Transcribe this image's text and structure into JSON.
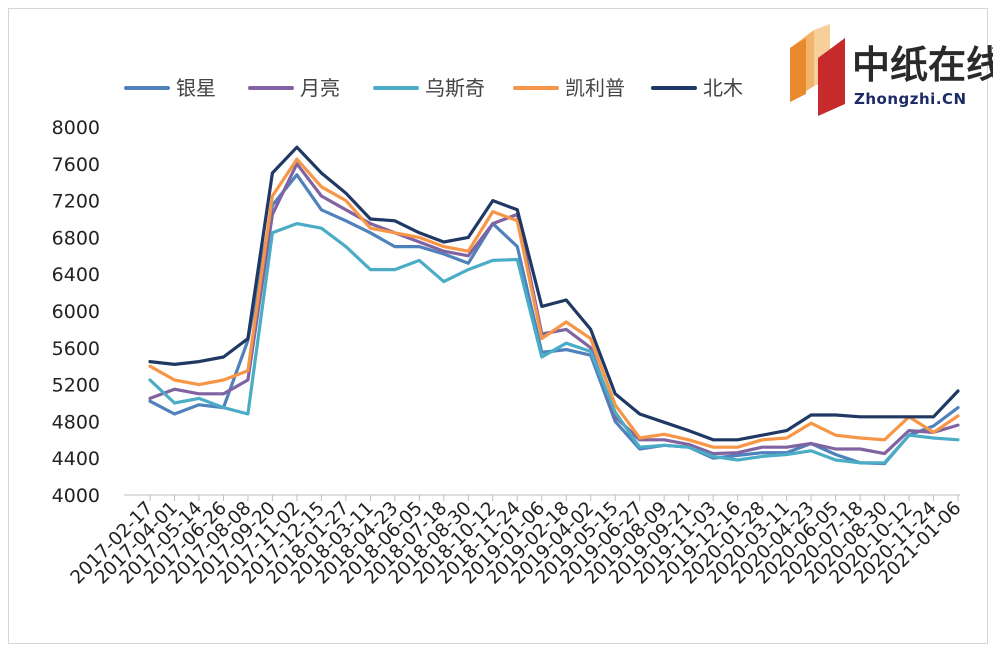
{
  "logo": {
    "cn": "中纸在线",
    "en": "Zhongzhi.CN"
  },
  "chart_data": {
    "type": "line",
    "title": "",
    "xlabel": "",
    "ylabel": "",
    "ylim": [
      4000,
      8000
    ],
    "yticks": [
      4000,
      4400,
      4800,
      5200,
      5600,
      6000,
      6400,
      6800,
      7200,
      7600,
      8000
    ],
    "grid": false,
    "legend_position": "top",
    "x": [
      "2017-02-17",
      "2017-04-01",
      "2017-05-14",
      "2017-06-26",
      "2017-08-08",
      "2017-09-20",
      "2017-11-02",
      "2017-12-15",
      "2018-01-27",
      "2018-03-11",
      "2018-04-23",
      "2018-06-05",
      "2018-07-18",
      "2018-08-30",
      "2018-10-12",
      "2018-11-24",
      "2019-01-06",
      "2019-02-18",
      "2019-04-02",
      "2019-05-15",
      "2019-06-27",
      "2019-08-09",
      "2019-09-21",
      "2019-11-03",
      "2019-12-16",
      "2020-01-28",
      "2020-03-11",
      "2020-04-23",
      "2020-06-05",
      "2020-07-18",
      "2020-08-30",
      "2020-10-12",
      "2020-11-24",
      "2021-01-06"
    ],
    "series": [
      {
        "name": "银星",
        "color": "#4f81bd",
        "values": [
          5020,
          4880,
          4980,
          4950,
          5680,
          7150,
          7480,
          7100,
          6980,
          6850,
          6700,
          6700,
          6620,
          6520,
          6950,
          6700,
          5550,
          5580,
          5520,
          4800,
          4500,
          4540,
          4520,
          4400,
          4430,
          4460,
          4460,
          4560,
          4440,
          4350,
          4340,
          4650,
          4750,
          4950
        ]
      },
      {
        "name": "月亮",
        "color": "#8064a2",
        "values": [
          5050,
          5150,
          5100,
          5100,
          5250,
          7050,
          7600,
          7250,
          7100,
          6950,
          6850,
          6750,
          6650,
          6600,
          6950,
          7050,
          5750,
          5800,
          5600,
          4850,
          4600,
          4600,
          4550,
          4450,
          4460,
          4520,
          4520,
          4560,
          4500,
          4500,
          4450,
          4700,
          4680,
          4760
        ]
      },
      {
        "name": "乌斯奇",
        "color": "#4bacc6",
        "values": [
          5250,
          5000,
          5050,
          4950,
          4880,
          6850,
          6950,
          6900,
          6700,
          6450,
          6450,
          6550,
          6320,
          6450,
          6550,
          6560,
          5500,
          5650,
          5560,
          4900,
          4520,
          4540,
          4520,
          4420,
          4380,
          4420,
          4440,
          4480,
          4380,
          4350,
          4350,
          4650,
          4620,
          4600
        ]
      },
      {
        "name": "凯利普",
        "color": "#f79646",
        "values": [
          5400,
          5250,
          5200,
          5250,
          5350,
          7250,
          7650,
          7350,
          7200,
          6900,
          6850,
          6800,
          6700,
          6650,
          7080,
          6980,
          5700,
          5880,
          5700,
          4980,
          4620,
          4660,
          4600,
          4520,
          4520,
          4600,
          4620,
          4780,
          4650,
          4620,
          4600,
          4850,
          4680,
          4860
        ]
      },
      {
        "name": "北木",
        "color": "#1f3864",
        "values": [
          5450,
          5420,
          5450,
          5500,
          5700,
          7500,
          7780,
          7500,
          7280,
          7000,
          6980,
          6850,
          6750,
          6800,
          7200,
          7100,
          6050,
          6120,
          5800,
          5100,
          4880,
          4790,
          4700,
          4600,
          4600,
          4650,
          4700,
          4870,
          4870,
          4850,
          4850,
          4850,
          4850,
          5130
        ]
      }
    ]
  }
}
